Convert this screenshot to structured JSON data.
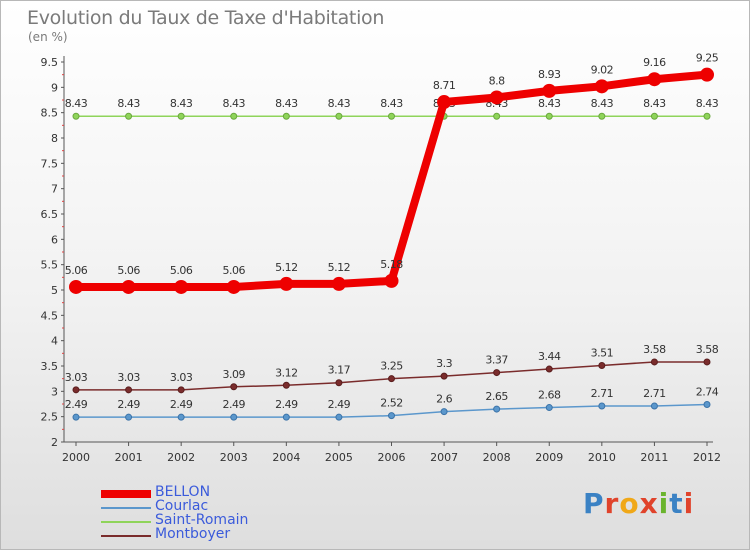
{
  "header": {
    "title": "Evolution du Taux de Taxe d'Habitation",
    "unit": "(en %)"
  },
  "logo": {
    "text": "Proxiti",
    "colors": [
      "#3b82c4",
      "#e0432b",
      "#f0a818",
      "#e0432b",
      "#6ab42d",
      "#3b82c4",
      "#e0432b"
    ]
  },
  "chart_data": {
    "type": "line",
    "title": "Evolution du Taux de Taxe d'Habitation",
    "ylabel": "(en %)",
    "xlabel": "",
    "x": [
      2000,
      2001,
      2002,
      2003,
      2004,
      2005,
      2006,
      2007,
      2008,
      2009,
      2010,
      2011,
      2012
    ],
    "ylim": [
      2,
      9.5
    ],
    "yticks": [
      2,
      2.5,
      3,
      3.5,
      4,
      4.5,
      5,
      5.5,
      6,
      6.5,
      7,
      7.5,
      8,
      8.5,
      9,
      9.5
    ],
    "grid": false,
    "legend_position": "bottom-left",
    "series": [
      {
        "name": "BELLON",
        "color": "#ee0000",
        "emphasis": true,
        "values": [
          5.06,
          5.06,
          5.06,
          5.06,
          5.12,
          5.12,
          5.18,
          8.71,
          8.8,
          8.93,
          9.02,
          9.16,
          9.25
        ],
        "labels": [
          "5.06",
          "5.06",
          "5.06",
          "5.06",
          "5.12",
          "5.12",
          "5.18",
          "8.71",
          "8.8",
          "8.93",
          "9.02",
          "9.16",
          "9.25"
        ]
      },
      {
        "name": "Courlac",
        "color": "#5b97cc",
        "values": [
          2.49,
          2.49,
          2.49,
          2.49,
          2.49,
          2.49,
          2.52,
          2.6,
          2.65,
          2.68,
          2.71,
          2.71,
          2.74
        ],
        "labels": [
          "2.49",
          "2.49",
          "2.49",
          "2.49",
          "2.49",
          "2.49",
          "2.52",
          "2.6",
          "2.65",
          "2.68",
          "2.71",
          "2.71",
          "2.74"
        ]
      },
      {
        "name": "Saint-Romain",
        "color": "#8fd45a",
        "values": [
          8.43,
          8.43,
          8.43,
          8.43,
          8.43,
          8.43,
          8.43,
          8.43,
          8.43,
          8.43,
          8.43,
          8.43,
          8.43
        ],
        "labels": [
          "8.43",
          "8.43",
          "8.43",
          "8.43",
          "8.43",
          "8.43",
          "8.43",
          "8.43",
          "8.43",
          "8.43",
          "8.43",
          "8.43",
          "8.43"
        ]
      },
      {
        "name": "Montboyer",
        "color": "#7a2c2c",
        "values": [
          3.03,
          3.03,
          3.03,
          3.09,
          3.12,
          3.17,
          3.25,
          3.3,
          3.37,
          3.44,
          3.51,
          3.58,
          3.58
        ],
        "labels": [
          "3.03",
          "3.03",
          "3.03",
          "3.09",
          "3.12",
          "3.17",
          "3.25",
          "3.3",
          "3.37",
          "3.44",
          "3.51",
          "3.58",
          "3.58"
        ]
      }
    ]
  }
}
